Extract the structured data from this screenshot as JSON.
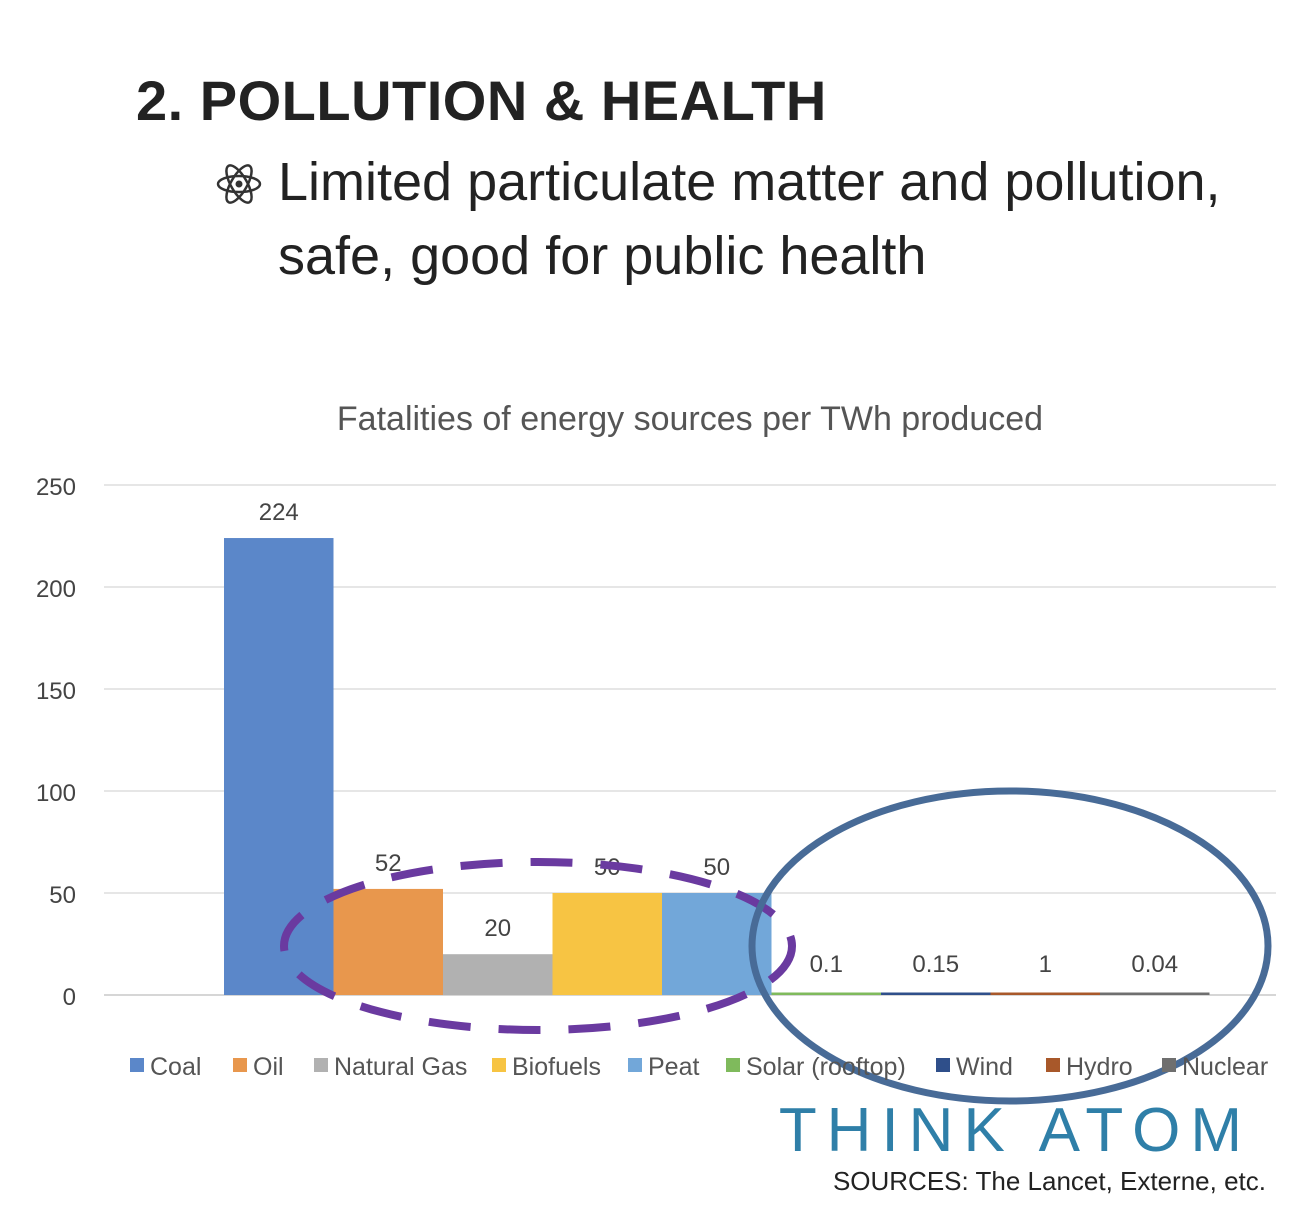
{
  "slide": {
    "title": "2. POLLUTION & HEALTH",
    "bullet_icon": "atom-icon",
    "bullet_text": "Limited particulate matter and pollution, safe, good for public health"
  },
  "chart_data": {
    "type": "bar",
    "title": "Fatalities of energy sources per TWh produced",
    "xlabel": "",
    "ylabel": "",
    "ylim": [
      0,
      250
    ],
    "yticks": [
      0,
      50,
      100,
      150,
      200,
      250
    ],
    "grid": true,
    "legend_position": "bottom",
    "categories": [
      "Coal",
      "Oil",
      "Natural Gas",
      "Biofuels",
      "Peat",
      "Solar (rooftop)",
      "Wind",
      "Hydro",
      "Nuclear"
    ],
    "values": [
      224,
      52,
      20,
      50,
      50,
      0.1,
      0.15,
      1,
      0.04
    ],
    "data_labels": [
      "224",
      "52",
      "20",
      "50",
      "50",
      "0.1",
      "0.15",
      "1",
      "0.04"
    ],
    "colors": [
      "#5b87c9",
      "#e8974d",
      "#b1b1b1",
      "#f7c443",
      "#72a7d9",
      "#7fba5c",
      "#2f4f8a",
      "#a8582a",
      "#6f6f6f"
    ],
    "annotations": [
      {
        "shape": "dashed-ellipse",
        "color": "#6a3aa0",
        "encloses": [
          "Oil",
          "Natural Gas",
          "Biofuels",
          "Peat"
        ]
      },
      {
        "shape": "solid-ellipse",
        "color": "#486b97",
        "encloses": [
          "Solar (rooftop)",
          "Wind",
          "Hydro",
          "Nuclear"
        ]
      }
    ]
  },
  "footer": {
    "brand": "THINK ATOM",
    "brand_color": "#2f7fa8",
    "sources": "SOURCES: The Lancet, Externe, etc."
  }
}
